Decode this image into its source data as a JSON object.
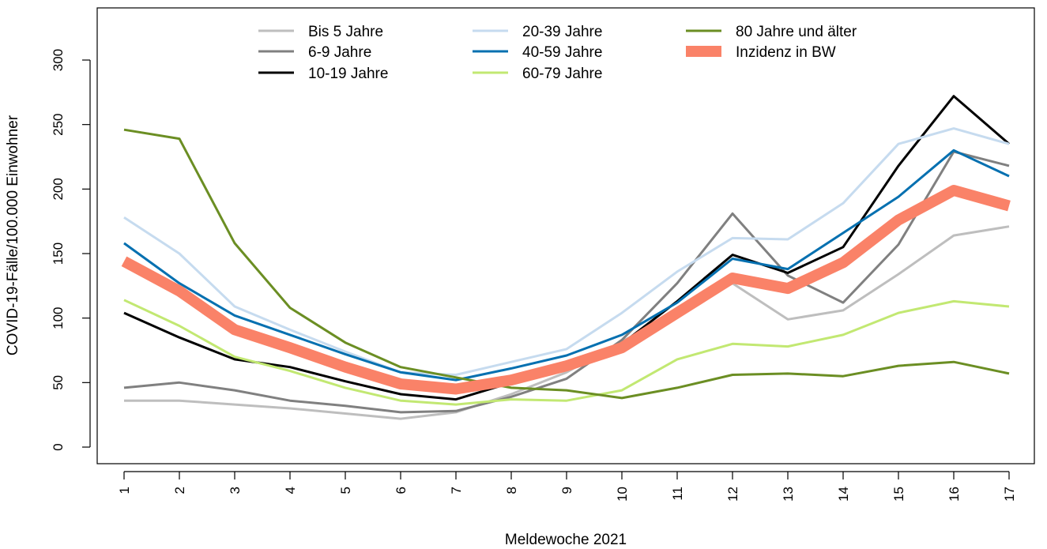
{
  "chart_data": {
    "type": "line",
    "title": "",
    "xlabel": "Meldewoche 2021",
    "ylabel": "COVID-19-Fälle/100.000 Einwohner",
    "x": [
      "1",
      "2",
      "3",
      "4",
      "5",
      "6",
      "7",
      "8",
      "9",
      "10",
      "11",
      "12",
      "13",
      "14",
      "15",
      "16",
      "17"
    ],
    "xlim": [
      1,
      17
    ],
    "ylim": [
      0,
      300
    ],
    "yticks": [
      "0",
      "50",
      "100",
      "150",
      "200",
      "250",
      "300"
    ],
    "legend_position": "top",
    "grid": false,
    "series": [
      {
        "name": "Bis 5 Jahre",
        "color": "#bebebe",
        "width": 3,
        "values": [
          36,
          36,
          33,
          30,
          26,
          22,
          27,
          41,
          58,
          82,
          103,
          127,
          99,
          106,
          134,
          164,
          171
        ]
      },
      {
        "name": "6-9 Jahre",
        "color": "#808080",
        "width": 3,
        "values": [
          46,
          50,
          44,
          36,
          32,
          27,
          28,
          39,
          53,
          83,
          127,
          181,
          133,
          112,
          157,
          229,
          218
        ]
      },
      {
        "name": "10-19 Jahre",
        "color": "#000000",
        "width": 3,
        "values": [
          104,
          85,
          68,
          62,
          51,
          41,
          37,
          50,
          66,
          80,
          113,
          149,
          135,
          155,
          218,
          272,
          235
        ]
      },
      {
        "name": "20-39 Jahre",
        "color": "#c6dbef",
        "width": 3,
        "values": [
          178,
          150,
          109,
          91,
          74,
          58,
          56,
          66,
          76,
          104,
          136,
          162,
          161,
          189,
          235,
          247,
          235
        ]
      },
      {
        "name": "40-59 Jahre",
        "color": "#0570b0",
        "width": 3,
        "values": [
          158,
          127,
          102,
          87,
          72,
          58,
          52,
          61,
          71,
          87,
          112,
          146,
          138,
          166,
          194,
          230,
          210
        ]
      },
      {
        "name": "60-79 Jahre",
        "color": "#c2e872",
        "width": 3,
        "values": [
          114,
          94,
          70,
          59,
          46,
          36,
          33,
          37,
          36,
          44,
          68,
          80,
          78,
          87,
          104,
          113,
          109
        ]
      },
      {
        "name": "80 Jahre und älter",
        "color": "#6b8e23",
        "width": 3,
        "values": [
          246,
          239,
          158,
          108,
          81,
          62,
          54,
          46,
          44,
          38,
          46,
          56,
          57,
          55,
          63,
          66,
          57
        ]
      },
      {
        "name": "Inzidenz in BW",
        "color": "#fa8268",
        "width": 14,
        "values": [
          144,
          121,
          91,
          77,
          62,
          49,
          45,
          52,
          63,
          77,
          104,
          131,
          123,
          143,
          176,
          199,
          187
        ]
      }
    ]
  }
}
